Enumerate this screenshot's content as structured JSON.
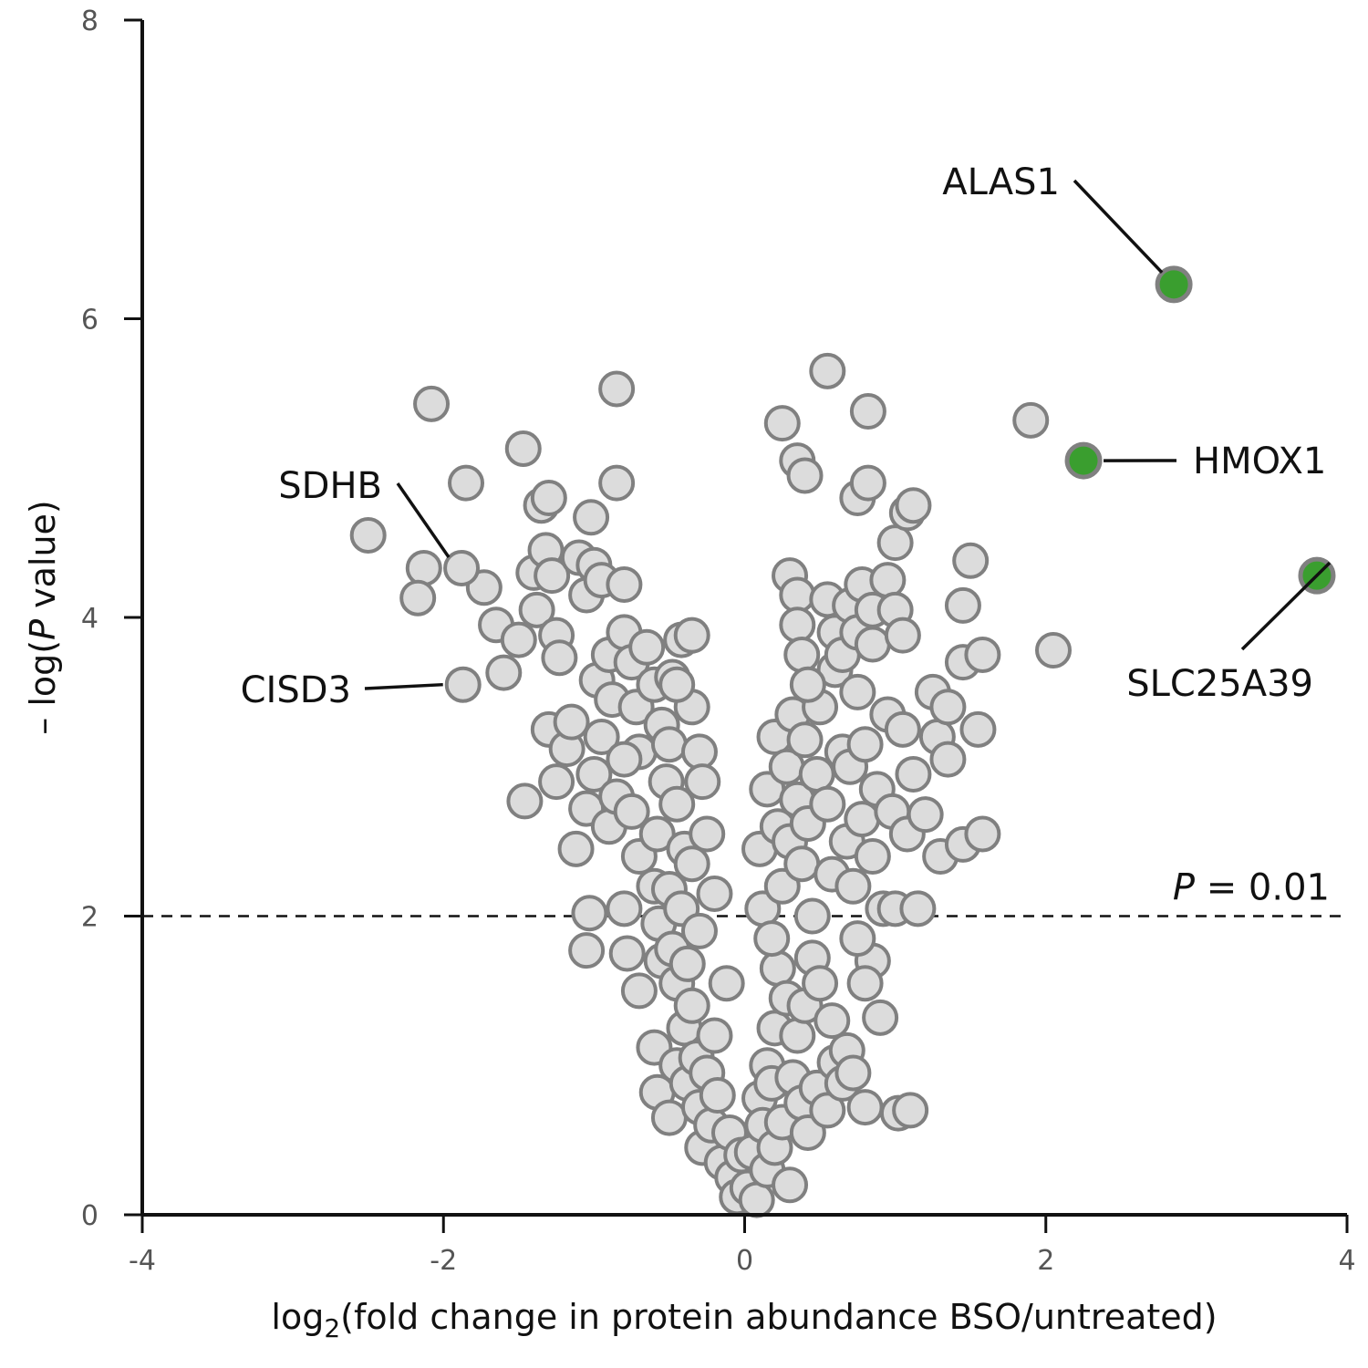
{
  "chart_data": {
    "type": "scatter",
    "xlabel": {
      "prefix": "log",
      "sub": "2",
      "rest": "(fold change in protein abundance BSO/untreated)"
    },
    "ylabel": {
      "prefix": "– log(",
      "italic": "P",
      "rest": " value)"
    },
    "xlim": [
      -4,
      4
    ],
    "ylim": [
      0,
      8
    ],
    "xticks": [
      -4,
      -2,
      0,
      2,
      4
    ],
    "xtick_labels": [
      "-4",
      "-2",
      "0",
      "2",
      "4"
    ],
    "yticks": [
      0,
      2,
      4,
      6,
      8
    ],
    "ytick_labels": [
      "0",
      "2",
      "4",
      "6",
      "8"
    ],
    "threshold": {
      "y": 2,
      "label_italic": "P",
      "label_rest": " = 0.01"
    },
    "colors": {
      "background_point_fill": "#dcdcdc",
      "point_stroke": "#808080",
      "highlight_fill": "#3a9e2f",
      "axis": "#111111"
    },
    "highlighted": [
      {
        "name": "ALAS1",
        "x": 2.85,
        "y": 6.23
      },
      {
        "name": "HMOX1",
        "x": 2.25,
        "y": 5.05
      },
      {
        "name": "SLC25A39",
        "x": 3.8,
        "y": 4.28
      }
    ],
    "labeled_background": [
      {
        "name": "SDHB",
        "x": -1.88,
        "y": 4.33
      },
      {
        "name": "CISD3",
        "x": -1.87,
        "y": 3.55
      }
    ],
    "points": [
      [
        -2.5,
        4.55
      ],
      [
        -2.08,
        5.43
      ],
      [
        -2.13,
        4.33
      ],
      [
        -2.17,
        4.13
      ],
      [
        -1.85,
        4.9
      ],
      [
        -1.73,
        4.2
      ],
      [
        -1.65,
        3.95
      ],
      [
        -1.6,
        3.63
      ],
      [
        -1.5,
        3.85
      ],
      [
        -1.47,
        5.13
      ],
      [
        -1.46,
        2.77
      ],
      [
        -1.4,
        4.3
      ],
      [
        -1.38,
        4.05
      ],
      [
        -1.35,
        4.75
      ],
      [
        -1.32,
        4.45
      ],
      [
        -1.3,
        4.8
      ],
      [
        -1.28,
        4.28
      ],
      [
        -1.25,
        3.88
      ],
      [
        -1.23,
        3.73
      ],
      [
        -1.3,
        3.25
      ],
      [
        -1.25,
        2.9
      ],
      [
        -1.18,
        3.12
      ],
      [
        -1.15,
        3.3
      ],
      [
        -1.1,
        4.4
      ],
      [
        -1.05,
        4.15
      ],
      [
        -1.02,
        4.67
      ],
      [
        -1.0,
        4.35
      ],
      [
        -0.98,
        3.58
      ],
      [
        -0.95,
        4.25
      ],
      [
        -0.9,
        3.75
      ],
      [
        -0.88,
        3.45
      ],
      [
        -0.85,
        5.53
      ],
      [
        -0.85,
        4.9
      ],
      [
        -0.8,
        4.22
      ],
      [
        -0.8,
        3.9
      ],
      [
        -0.75,
        3.7
      ],
      [
        -0.72,
        3.4
      ],
      [
        -0.7,
        3.1
      ],
      [
        -1.12,
        2.45
      ],
      [
        -1.05,
        2.72
      ],
      [
        -1.0,
        2.95
      ],
      [
        -0.95,
        3.2
      ],
      [
        -0.9,
        2.6
      ],
      [
        -0.85,
        2.8
      ],
      [
        -0.8,
        3.05
      ],
      [
        -0.75,
        2.7
      ],
      [
        -0.7,
        2.4
      ],
      [
        -1.03,
        2.02
      ],
      [
        -1.05,
        1.77
      ],
      [
        -0.8,
        2.05
      ],
      [
        -0.78,
        1.75
      ],
      [
        -0.7,
        1.5
      ],
      [
        -0.65,
        3.8
      ],
      [
        -0.6,
        3.55
      ],
      [
        -0.58,
        2.55
      ],
      [
        -0.55,
        3.28
      ],
      [
        -0.52,
        2.9
      ],
      [
        -0.5,
        3.15
      ],
      [
        -0.48,
        3.6
      ],
      [
        -0.45,
        2.75
      ],
      [
        -0.42,
        3.85
      ],
      [
        -0.4,
        2.45
      ],
      [
        -0.35,
        3.4
      ],
      [
        -0.3,
        3.1
      ],
      [
        -0.28,
        2.9
      ],
      [
        -0.6,
        2.2
      ],
      [
        -0.57,
        1.95
      ],
      [
        -0.55,
        1.7
      ],
      [
        -0.5,
        2.18
      ],
      [
        -0.48,
        1.78
      ],
      [
        -0.45,
        1.55
      ],
      [
        -0.42,
        2.05
      ],
      [
        -0.38,
        1.68
      ],
      [
        -0.35,
        2.35
      ],
      [
        -0.3,
        1.9
      ],
      [
        -0.25,
        2.55
      ],
      [
        -0.2,
        2.15
      ],
      [
        -0.6,
        1.12
      ],
      [
        -0.58,
        0.82
      ],
      [
        -0.5,
        0.65
      ],
      [
        -0.45,
        1.0
      ],
      [
        -0.4,
        1.25
      ],
      [
        -0.38,
        0.88
      ],
      [
        -0.35,
        1.4
      ],
      [
        -0.32,
        1.05
      ],
      [
        -0.3,
        0.72
      ],
      [
        -0.28,
        0.45
      ],
      [
        -0.25,
        0.95
      ],
      [
        -0.22,
        0.6
      ],
      [
        -0.2,
        1.2
      ],
      [
        -0.18,
        0.8
      ],
      [
        -0.15,
        0.35
      ],
      [
        -0.12,
        1.55
      ],
      [
        -0.1,
        0.55
      ],
      [
        -0.08,
        0.25
      ],
      [
        -0.05,
        0.12
      ],
      [
        -0.02,
        0.4
      ],
      [
        0.02,
        0.18
      ],
      [
        0.05,
        0.42
      ],
      [
        0.08,
        0.1
      ],
      [
        0.1,
        0.78
      ],
      [
        0.12,
        0.6
      ],
      [
        0.15,
        1.0
      ],
      [
        0.15,
        0.3
      ],
      [
        0.18,
        0.88
      ],
      [
        0.2,
        1.25
      ],
      [
        0.2,
        0.45
      ],
      [
        0.22,
        1.65
      ],
      [
        0.25,
        0.62
      ],
      [
        0.28,
        1.45
      ],
      [
        0.3,
        0.2
      ],
      [
        0.32,
        0.92
      ],
      [
        0.35,
        1.2
      ],
      [
        0.38,
        0.75
      ],
      [
        0.4,
        1.4
      ],
      [
        0.42,
        0.55
      ],
      [
        0.45,
        1.72
      ],
      [
        0.48,
        0.85
      ],
      [
        0.5,
        1.55
      ],
      [
        0.55,
        0.7
      ],
      [
        0.58,
        1.3
      ],
      [
        0.6,
        1.02
      ],
      [
        0.65,
        0.88
      ],
      [
        0.68,
        1.1
      ],
      [
        0.72,
        0.95
      ],
      [
        0.8,
        0.72
      ],
      [
        1.02,
        0.68
      ],
      [
        1.1,
        0.7
      ],
      [
        0.9,
        1.32
      ],
      [
        0.85,
        1.7
      ],
      [
        0.8,
        1.55
      ],
      [
        0.75,
        1.85
      ],
      [
        0.1,
        2.45
      ],
      [
        0.12,
        2.05
      ],
      [
        0.15,
        2.85
      ],
      [
        0.18,
        1.85
      ],
      [
        0.2,
        3.2
      ],
      [
        0.22,
        2.6
      ],
      [
        0.25,
        2.2
      ],
      [
        0.28,
        3.0
      ],
      [
        0.3,
        2.5
      ],
      [
        0.32,
        3.35
      ],
      [
        0.35,
        2.78
      ],
      [
        0.38,
        2.35
      ],
      [
        0.4,
        3.18
      ],
      [
        0.42,
        2.62
      ],
      [
        0.45,
        2.0
      ],
      [
        0.48,
        2.95
      ],
      [
        0.5,
        3.4
      ],
      [
        0.55,
        2.75
      ],
      [
        0.58,
        2.28
      ],
      [
        0.6,
        3.65
      ],
      [
        0.65,
        3.1
      ],
      [
        0.68,
        2.5
      ],
      [
        0.7,
        3.0
      ],
      [
        0.72,
        2.2
      ],
      [
        0.75,
        3.5
      ],
      [
        0.78,
        2.65
      ],
      [
        0.8,
        3.15
      ],
      [
        0.85,
        2.4
      ],
      [
        0.88,
        2.85
      ],
      [
        0.92,
        2.05
      ],
      [
        0.95,
        3.35
      ],
      [
        0.98,
        2.7
      ],
      [
        1.0,
        2.05
      ],
      [
        1.05,
        3.25
      ],
      [
        1.08,
        2.55
      ],
      [
        1.12,
        2.95
      ],
      [
        1.15,
        2.05
      ],
      [
        1.2,
        2.68
      ],
      [
        1.25,
        3.5
      ],
      [
        1.28,
        3.2
      ],
      [
        1.3,
        2.4
      ],
      [
        1.35,
        3.05
      ],
      [
        1.45,
        2.48
      ],
      [
        1.58,
        2.55
      ],
      [
        1.55,
        3.25
      ],
      [
        1.45,
        3.7
      ],
      [
        1.58,
        3.75
      ],
      [
        1.35,
        3.4
      ],
      [
        1.5,
        4.38
      ],
      [
        1.45,
        4.08
      ],
      [
        0.3,
        4.28
      ],
      [
        0.35,
        4.15
      ],
      [
        0.35,
        3.95
      ],
      [
        0.38,
        3.75
      ],
      [
        0.42,
        3.55
      ],
      [
        0.55,
        4.12
      ],
      [
        0.6,
        3.9
      ],
      [
        0.65,
        3.75
      ],
      [
        0.7,
        4.08
      ],
      [
        0.75,
        3.9
      ],
      [
        0.78,
        4.22
      ],
      [
        0.85,
        3.82
      ],
      [
        0.85,
        4.05
      ],
      [
        0.95,
        4.25
      ],
      [
        1.0,
        4.05
      ],
      [
        1.05,
        3.88
      ],
      [
        1.0,
        4.5
      ],
      [
        1.08,
        4.7
      ],
      [
        1.12,
        4.75
      ],
      [
        0.25,
        5.3
      ],
      [
        0.35,
        5.05
      ],
      [
        0.4,
        4.95
      ],
      [
        0.55,
        5.65
      ],
      [
        0.75,
        4.8
      ],
      [
        0.82,
        4.9
      ],
      [
        0.82,
        5.38
      ],
      [
        1.9,
        5.32
      ],
      [
        2.05,
        3.78
      ],
      [
        -0.35,
        3.88
      ],
      [
        -0.45,
        3.55
      ]
    ]
  }
}
